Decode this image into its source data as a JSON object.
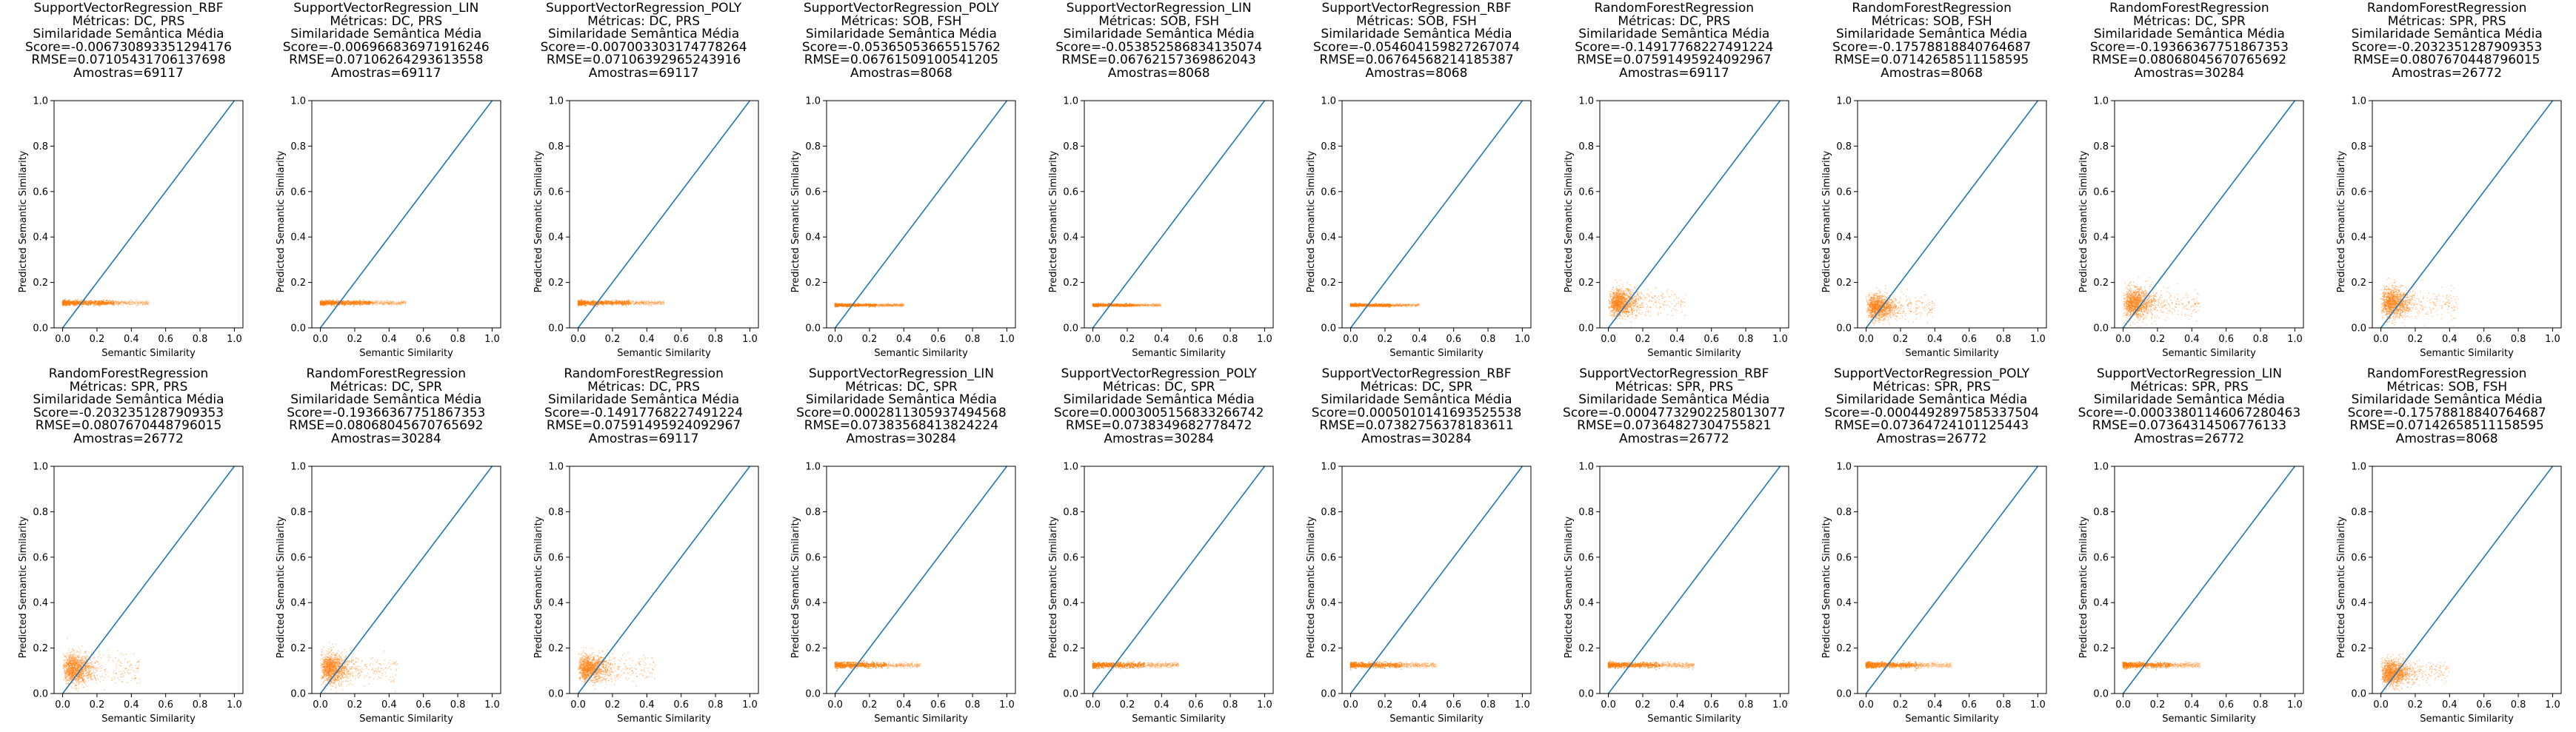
{
  "chart_data": [
    {
      "type": "scatter",
      "title_lines": [
        "SupportVectorRegression_RBF",
        "Métricas: DC, PRS",
        "Similaridade Semântica Média",
        "Score=-0.006730893351294176",
        "RMSE=0.07105431706137698",
        "Amostras=69117"
      ],
      "xlabel": "Semantic Similarity",
      "ylabel": "Predicted Semantic Similarity",
      "xlim": [
        0,
        1
      ],
      "ylim": [
        0,
        1
      ],
      "xticks": [
        "0.0",
        "0.2",
        "0.4",
        "0.6",
        "0.8",
        "1.0"
      ],
      "yticks": [
        "0.0",
        "0.2",
        "0.4",
        "0.6",
        "0.8",
        "1.0"
      ],
      "reference_line": [
        [
          0,
          0
        ],
        [
          1,
          1
        ]
      ],
      "scatter": {
        "x_range": [
          0,
          0.5
        ],
        "y_center": 0.11,
        "y_spread": 0.01,
        "density": "flat"
      }
    },
    {
      "type": "scatter",
      "title_lines": [
        "SupportVectorRegression_LIN",
        "Métricas: DC, PRS",
        "Similaridade Semântica Média",
        "Score=-0.006966836971916246",
        "RMSE=0.07106264293613558",
        "Amostras=69117"
      ],
      "xlabel": "Semantic Similarity",
      "ylabel": "Predicted Semantic Similarity",
      "xlim": [
        0,
        1
      ],
      "ylim": [
        0,
        1
      ],
      "xticks": [
        "0.0",
        "0.2",
        "0.4",
        "0.6",
        "0.8",
        "1.0"
      ],
      "yticks": [
        "0.0",
        "0.2",
        "0.4",
        "0.6",
        "0.8",
        "1.0"
      ],
      "reference_line": [
        [
          0,
          0
        ],
        [
          1,
          1
        ]
      ],
      "scatter": {
        "x_range": [
          0,
          0.5
        ],
        "y_center": 0.11,
        "y_spread": 0.01,
        "density": "flat"
      }
    },
    {
      "type": "scatter",
      "title_lines": [
        "SupportVectorRegression_POLY",
        "Métricas: DC, PRS",
        "Similaridade Semântica Média",
        "Score=-0.007003303174778264",
        "RMSE=0.07106392965243916",
        "Amostras=69117"
      ],
      "xlabel": "Semantic Similarity",
      "ylabel": "Predicted Semantic Similarity",
      "xlim": [
        0,
        1
      ],
      "ylim": [
        0,
        1
      ],
      "xticks": [
        "0.0",
        "0.2",
        "0.4",
        "0.6",
        "0.8",
        "1.0"
      ],
      "yticks": [
        "0.0",
        "0.2",
        "0.4",
        "0.6",
        "0.8",
        "1.0"
      ],
      "reference_line": [
        [
          0,
          0
        ],
        [
          1,
          1
        ]
      ],
      "scatter": {
        "x_range": [
          0,
          0.5
        ],
        "y_center": 0.11,
        "y_spread": 0.01,
        "density": "flat"
      }
    },
    {
      "type": "scatter",
      "title_lines": [
        "SupportVectorRegression_POLY",
        "Métricas: SOB, FSH",
        "Similaridade Semântica Média",
        "Score=-0.053650536655157​62",
        "RMSE=0.06761509100541205",
        "Amostras=8068"
      ],
      "xlabel": "Semantic Similarity",
      "ylabel": "Predicted Semantic Similarity",
      "xlim": [
        0,
        1
      ],
      "ylim": [
        0,
        1
      ],
      "xticks": [
        "0.0",
        "0.2",
        "0.4",
        "0.6",
        "0.8",
        "1.0"
      ],
      "yticks": [
        "0.0",
        "0.2",
        "0.4",
        "0.6",
        "0.8",
        "1.0"
      ],
      "reference_line": [
        [
          0,
          0
        ],
        [
          1,
          1
        ]
      ],
      "scatter": {
        "x_range": [
          0,
          0.4
        ],
        "y_center": 0.1,
        "y_spread": 0.006,
        "density": "flat"
      }
    },
    {
      "type": "scatter",
      "title_lines": [
        "SupportVectorRegression_LIN",
        "Métricas: SOB, FSH",
        "Similaridade Semântica Média",
        "Score=-0.053852586834135074",
        "RMSE=0.06762157369862043",
        "Amostras=8068"
      ],
      "xlabel": "Semantic Similarity",
      "ylabel": "Predicted Semantic Similarity",
      "xlim": [
        0,
        1
      ],
      "ylim": [
        0,
        1
      ],
      "xticks": [
        "0.0",
        "0.2",
        "0.4",
        "0.6",
        "0.8",
        "1.0"
      ],
      "yticks": [
        "0.0",
        "0.2",
        "0.4",
        "0.6",
        "0.8",
        "1.0"
      ],
      "reference_line": [
        [
          0,
          0
        ],
        [
          1,
          1
        ]
      ],
      "scatter": {
        "x_range": [
          0,
          0.4
        ],
        "y_center": 0.1,
        "y_spread": 0.006,
        "density": "flat"
      }
    },
    {
      "type": "scatter",
      "title_lines": [
        "SupportVectorRegression_RBF",
        "Métricas: SOB, FSH",
        "Similaridade Semântica Média",
        "Score=-0.054604159827267074",
        "RMSE=0.06764568214185387",
        "Amostras=8068"
      ],
      "xlabel": "Semantic Similarity",
      "ylabel": "Predicted Semantic Similarity",
      "xlim": [
        0,
        1
      ],
      "ylim": [
        0,
        1
      ],
      "xticks": [
        "0.0",
        "0.2",
        "0.4",
        "0.6",
        "0.8",
        "1.0"
      ],
      "yticks": [
        "0.0",
        "0.2",
        "0.4",
        "0.6",
        "0.8",
        "1.0"
      ],
      "reference_line": [
        [
          0,
          0
        ],
        [
          1,
          1
        ]
      ],
      "scatter": {
        "x_range": [
          0,
          0.4
        ],
        "y_center": 0.1,
        "y_spread": 0.006,
        "density": "flat"
      }
    },
    {
      "type": "scatter",
      "title_lines": [
        "RandomForestRegression",
        "Métricas: DC, PRS",
        "Similaridade Semântica Média",
        "Score=-0.14917768227491224",
        "RMSE=0.07591495924092967",
        "Amostras=69117"
      ],
      "xlabel": "Semantic Similarity",
      "ylabel": "Predicted Semantic Similarity",
      "xlim": [
        0,
        1
      ],
      "ylim": [
        0,
        1
      ],
      "xticks": [
        "0.0",
        "0.2",
        "0.4",
        "0.6",
        "0.8",
        "1.0"
      ],
      "yticks": [
        "0.0",
        "0.2",
        "0.4",
        "0.6",
        "0.8",
        "1.0"
      ],
      "reference_line": [
        [
          0,
          0
        ],
        [
          1,
          1
        ]
      ],
      "scatter": {
        "x_range": [
          0,
          0.45
        ],
        "y_center": 0.11,
        "y_spread": 0.05,
        "density": "blob"
      }
    },
    {
      "type": "scatter",
      "title_lines": [
        "RandomForestRegression",
        "Métricas: SOB, FSH",
        "Similaridade Semântica Média",
        "Score=-0.17578818840764687",
        "RMSE=0.07142658511158595",
        "Amostras=8068"
      ],
      "xlabel": "Semantic Similarity",
      "ylabel": "Predicted Semantic Similarity",
      "xlim": [
        0,
        1
      ],
      "ylim": [
        0,
        1
      ],
      "xticks": [
        "0.0",
        "0.2",
        "0.4",
        "0.6",
        "0.8",
        "1.0"
      ],
      "yticks": [
        "0.0",
        "0.2",
        "0.4",
        "0.6",
        "0.8",
        "1.0"
      ],
      "reference_line": [
        [
          0,
          0
        ],
        [
          1,
          1
        ]
      ],
      "scatter": {
        "x_range": [
          0,
          0.4
        ],
        "y_center": 0.09,
        "y_spread": 0.045,
        "density": "blob"
      }
    },
    {
      "type": "scatter",
      "title_lines": [
        "RandomForestRegression",
        "Métricas: DC, SPR",
        "Similaridade Semântica Média",
        "Score=-0.19366367751867353",
        "RMSE=0.08068045670765692",
        "Amostras=30284"
      ],
      "xlabel": "Semantic Similarity",
      "ylabel": "Predicted Semantic Similarity",
      "xlim": [
        0,
        1
      ],
      "ylim": [
        0,
        1
      ],
      "xticks": [
        "0.0",
        "0.2",
        "0.4",
        "0.6",
        "0.8",
        "1.0"
      ],
      "yticks": [
        "0.0",
        "0.2",
        "0.4",
        "0.6",
        "0.8",
        "1.0"
      ],
      "reference_line": [
        [
          0,
          0
        ],
        [
          1,
          1
        ]
      ],
      "scatter": {
        "x_range": [
          0,
          0.45
        ],
        "y_center": 0.11,
        "y_spread": 0.055,
        "density": "blob"
      }
    },
    {
      "type": "scatter",
      "title_lines": [
        "RandomForestRegression",
        "Métricas: SPR, PRS",
        "Similaridade Semântica Média",
        "Score=-0.2032351287909353",
        "RMSE=0.0807670448796015",
        "Amostras=26772"
      ],
      "xlabel": "Semantic Similarity",
      "ylabel": "Predicted Semantic Similarity",
      "xlim": [
        0,
        1
      ],
      "ylim": [
        0,
        1
      ],
      "xticks": [
        "0.0",
        "0.2",
        "0.4",
        "0.6",
        "0.8",
        "1.0"
      ],
      "yticks": [
        "0.0",
        "0.2",
        "0.4",
        "0.6",
        "0.8",
        "1.0"
      ],
      "reference_line": [
        [
          0,
          0
        ],
        [
          1,
          1
        ]
      ],
      "scatter": {
        "x_range": [
          0,
          0.45
        ],
        "y_center": 0.11,
        "y_spread": 0.055,
        "density": "blob"
      }
    },
    {
      "type": "scatter",
      "title_lines": [
        "RandomForestRegression",
        "Métricas: SPR, PRS",
        "Similaridade Semântica Média",
        "Score=-0.2032351287909353",
        "RMSE=0.0807670448796015",
        "Amostras=26772"
      ],
      "xlabel": "Semantic Similarity",
      "ylabel": "Predicted Semantic Similarity",
      "xlim": [
        0,
        1
      ],
      "ylim": [
        0,
        1
      ],
      "xticks": [
        "0.0",
        "0.2",
        "0.4",
        "0.6",
        "0.8",
        "1.0"
      ],
      "yticks": [
        "0.0",
        "0.2",
        "0.4",
        "0.6",
        "0.8",
        "1.0"
      ],
      "reference_line": [
        [
          0,
          0
        ],
        [
          1,
          1
        ]
      ],
      "scatter": {
        "x_range": [
          0,
          0.45
        ],
        "y_center": 0.11,
        "y_spread": 0.055,
        "density": "blob"
      }
    },
    {
      "type": "scatter",
      "title_lines": [
        "RandomForestRegression",
        "Métricas: DC, SPR",
        "Similaridade Semântica Média",
        "Score=-0.19366367751867353",
        "RMSE=0.08068045670765692",
        "Amostras=30284"
      ],
      "xlabel": "Semantic Similarity",
      "ylabel": "Predicted Semantic Similarity",
      "xlim": [
        0,
        1
      ],
      "ylim": [
        0,
        1
      ],
      "xticks": [
        "0.0",
        "0.2",
        "0.4",
        "0.6",
        "0.8",
        "1.0"
      ],
      "yticks": [
        "0.0",
        "0.2",
        "0.4",
        "0.6",
        "0.8",
        "1.0"
      ],
      "reference_line": [
        [
          0,
          0
        ],
        [
          1,
          1
        ]
      ],
      "scatter": {
        "x_range": [
          0,
          0.45
        ],
        "y_center": 0.11,
        "y_spread": 0.055,
        "density": "blob"
      }
    },
    {
      "type": "scatter",
      "title_lines": [
        "RandomForestRegression",
        "Métricas: DC, PRS",
        "Similaridade Semântica Média",
        "Score=-0.14917768227491224",
        "RMSE=0.07591495924092967",
        "Amostras=69117"
      ],
      "xlabel": "Semantic Similarity",
      "ylabel": "Predicted Semantic Similarity",
      "xlim": [
        0,
        1
      ],
      "ylim": [
        0,
        1
      ],
      "xticks": [
        "0.0",
        "0.2",
        "0.4",
        "0.6",
        "0.8",
        "1.0"
      ],
      "yticks": [
        "0.0",
        "0.2",
        "0.4",
        "0.6",
        "0.8",
        "1.0"
      ],
      "reference_line": [
        [
          0,
          0
        ],
        [
          1,
          1
        ]
      ],
      "scatter": {
        "x_range": [
          0,
          0.45
        ],
        "y_center": 0.11,
        "y_spread": 0.05,
        "density": "blob"
      }
    },
    {
      "type": "scatter",
      "title_lines": [
        "SupportVectorRegression_LIN",
        "Métricas: DC, SPR",
        "Similaridade Semântica Média",
        "Score=0.00028113059374945​68",
        "RMSE=0.07383568413824224",
        "Amostras=30284"
      ],
      "xlabel": "Semantic Similarity",
      "ylabel": "Predicted Semantic Similarity",
      "xlim": [
        0,
        1
      ],
      "ylim": [
        0,
        1
      ],
      "xticks": [
        "0.0",
        "0.2",
        "0.4",
        "0.6",
        "0.8",
        "1.0"
      ],
      "yticks": [
        "0.0",
        "0.2",
        "0.4",
        "0.6",
        "0.8",
        "1.0"
      ],
      "reference_line": [
        [
          0,
          0
        ],
        [
          1,
          1
        ]
      ],
      "scatter": {
        "x_range": [
          0,
          0.5
        ],
        "y_center": 0.125,
        "y_spread": 0.012,
        "density": "flat"
      }
    },
    {
      "type": "scatter",
      "title_lines": [
        "SupportVectorRegression_POLY",
        "Métricas: DC, SPR",
        "Similaridade Semântica Média",
        "Score=0.00030051568332667​42",
        "RMSE=0.0738349682778472",
        "Amostras=30284"
      ],
      "xlabel": "Semantic Similarity",
      "ylabel": "Predicted Semantic Similarity",
      "xlim": [
        0,
        1
      ],
      "ylim": [
        0,
        1
      ],
      "xticks": [
        "0.0",
        "0.2",
        "0.4",
        "0.6",
        "0.8",
        "1.0"
      ],
      "yticks": [
        "0.0",
        "0.2",
        "0.4",
        "0.6",
        "0.8",
        "1.0"
      ],
      "reference_line": [
        [
          0,
          0
        ],
        [
          1,
          1
        ]
      ],
      "scatter": {
        "x_range": [
          0,
          0.5
        ],
        "y_center": 0.125,
        "y_spread": 0.012,
        "density": "flat"
      }
    },
    {
      "type": "scatter",
      "title_lines": [
        "SupportVectorRegression_RBF",
        "Métricas: DC, SPR",
        "Similaridade Semântica Média",
        "Score=0.0005010141693525538",
        "RMSE=0.07382756378183611",
        "Amostras=30284"
      ],
      "xlabel": "Semantic Similarity",
      "ylabel": "Predicted Semantic Similarity",
      "xlim": [
        0,
        1
      ],
      "ylim": [
        0,
        1
      ],
      "xticks": [
        "0.0",
        "0.2",
        "0.4",
        "0.6",
        "0.8",
        "1.0"
      ],
      "yticks": [
        "0.0",
        "0.2",
        "0.4",
        "0.6",
        "0.8",
        "1.0"
      ],
      "reference_line": [
        [
          0,
          0
        ],
        [
          1,
          1
        ]
      ],
      "scatter": {
        "x_range": [
          0,
          0.5
        ],
        "y_center": 0.125,
        "y_spread": 0.012,
        "density": "flat"
      }
    },
    {
      "type": "scatter",
      "title_lines": [
        "SupportVectorRegression_RBF",
        "Métricas: SPR, PRS",
        "Similaridade Semântica Média",
        "Score=-0.0004773290225801307​7",
        "RMSE=0.07364827304755821",
        "Amostras=26772"
      ],
      "xlabel": "Semantic Similarity",
      "ylabel": "Predicted Semantic Similarity",
      "xlim": [
        0,
        1
      ],
      "ylim": [
        0,
        1
      ],
      "xticks": [
        "0.0",
        "0.2",
        "0.4",
        "0.6",
        "0.8",
        "1.0"
      ],
      "yticks": [
        "0.0",
        "0.2",
        "0.4",
        "0.6",
        "0.8",
        "1.0"
      ],
      "reference_line": [
        [
          0,
          0
        ],
        [
          1,
          1
        ]
      ],
      "scatter": {
        "x_range": [
          0,
          0.5
        ],
        "y_center": 0.125,
        "y_spread": 0.012,
        "density": "flat"
      }
    },
    {
      "type": "scatter",
      "title_lines": [
        "SupportVectorRegression_POLY",
        "Métricas: SPR, PRS",
        "Similaridade Semântica Média",
        "Score=-0.0004492897585337504",
        "RMSE=0.07364724101125443",
        "Amostras=26772"
      ],
      "xlabel": "Semantic Similarity",
      "ylabel": "Predicted Semantic Similarity",
      "xlim": [
        0,
        1
      ],
      "ylim": [
        0,
        1
      ],
      "xticks": [
        "0.0",
        "0.2",
        "0.4",
        "0.6",
        "0.8",
        "1.0"
      ],
      "yticks": [
        "0.0",
        "0.2",
        "0.4",
        "0.6",
        "0.8",
        "1.0"
      ],
      "reference_line": [
        [
          0,
          0
        ],
        [
          1,
          1
        ]
      ],
      "scatter": {
        "x_range": [
          0,
          0.5
        ],
        "y_center": 0.125,
        "y_spread": 0.012,
        "density": "flat"
      }
    },
    {
      "type": "scatter",
      "title_lines": [
        "SupportVectorRegression_LIN",
        "Métricas: SPR, PRS",
        "Similaridade Semântica Média",
        "Score=-0.00033801146067280463",
        "RMSE=0.07364314506776133",
        "Amostras=26772"
      ],
      "xlabel": "Semantic Similarity",
      "ylabel": "Predicted Semantic Similarity",
      "xlim": [
        0,
        1
      ],
      "ylim": [
        0,
        1
      ],
      "xticks": [
        "0.0",
        "0.2",
        "0.4",
        "0.6",
        "0.8",
        "1.0"
      ],
      "yticks": [
        "0.0",
        "0.2",
        "0.4",
        "0.6",
        "0.8",
        "1.0"
      ],
      "reference_line": [
        [
          0,
          0
        ],
        [
          1,
          1
        ]
      ],
      "scatter": {
        "x_range": [
          0,
          0.45
        ],
        "y_center": 0.125,
        "y_spread": 0.012,
        "density": "flat"
      }
    },
    {
      "type": "scatter",
      "title_lines": [
        "RandomForestRegression",
        "Métricas: SOB, FSH",
        "Similaridade Semântica Média",
        "Score=-0.17578818840764687",
        "RMSE=0.07142658511158595",
        "Amostras=8068"
      ],
      "xlabel": "Semantic Similarity",
      "ylabel": "Predicted Semantic Similarity",
      "xlim": [
        0,
        1
      ],
      "ylim": [
        0,
        1
      ],
      "xticks": [
        "0.0",
        "0.2",
        "0.4",
        "0.6",
        "0.8",
        "1.0"
      ],
      "yticks": [
        "0.0",
        "0.2",
        "0.4",
        "0.6",
        "0.8",
        "1.0"
      ],
      "reference_line": [
        [
          0,
          0
        ],
        [
          1,
          1
        ]
      ],
      "scatter": {
        "x_range": [
          0,
          0.4
        ],
        "y_center": 0.09,
        "y_spread": 0.045,
        "density": "blob"
      }
    }
  ],
  "colors": {
    "reference_line": "#1f77b4",
    "scatter": "#ff7f0e",
    "axes": "#000000"
  }
}
